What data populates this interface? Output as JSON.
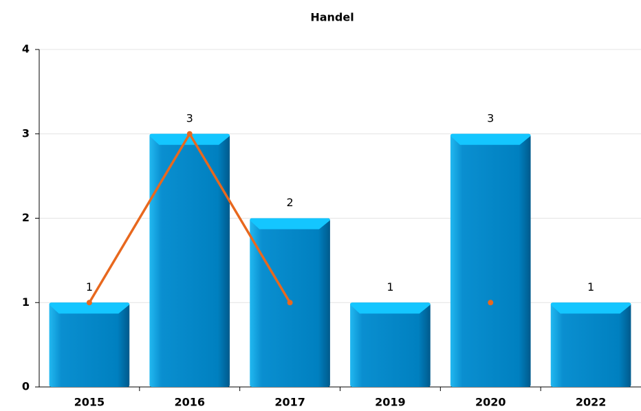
{
  "chart_data": {
    "type": "bar",
    "title": "Handel",
    "categories": [
      "2015",
      "2016",
      "2017",
      "2019",
      "2020",
      "2022"
    ],
    "series": [
      {
        "type": "bar",
        "color": "#0088cc",
        "values": [
          1,
          3,
          2,
          1,
          3,
          1
        ]
      },
      {
        "type": "line",
        "color": "#e8681e",
        "values": [
          1,
          3,
          1,
          null,
          1,
          null
        ]
      }
    ],
    "ylim": [
      0,
      4
    ],
    "yticks": [
      0,
      1,
      2,
      3,
      4
    ],
    "grid": true
  }
}
